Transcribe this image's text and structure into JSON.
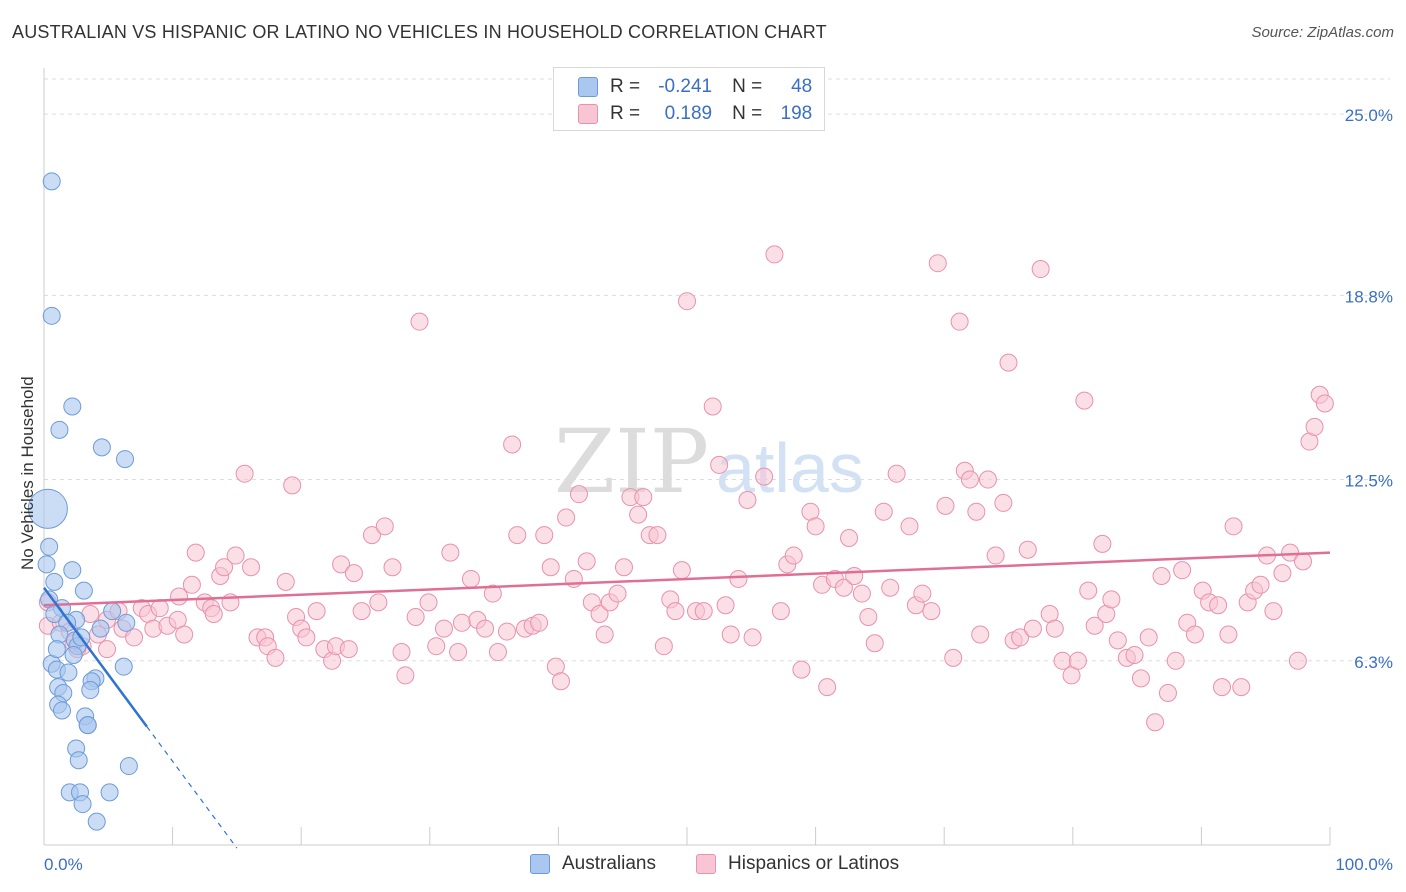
{
  "title": "AUSTRALIAN VS HISPANIC OR LATINO NO VEHICLES IN HOUSEHOLD CORRELATION CHART",
  "source": "Source: ZipAtlas.com",
  "watermark": {
    "zip": "ZIP",
    "atlas": "atlas"
  },
  "legend": {
    "rows": [
      {
        "r_label": "R =",
        "r_value": "-0.241",
        "n_label": "N =",
        "n_value": "48"
      },
      {
        "r_label": "R =",
        "r_value": "0.189",
        "n_label": "N =",
        "n_value": "198"
      }
    ]
  },
  "bottom_legend": {
    "australians": "Australians",
    "hispanics": "Hispanics or Latinos"
  },
  "colors": {
    "blue_fill": "#a9c7ef",
    "blue_stroke": "#6d9bd9",
    "blue_line": "#2f74d0",
    "pink_fill": "#f7c5d4",
    "pink_stroke": "#e991ad",
    "pink_line": "#e06f95",
    "tick_label": "#3a6fc6",
    "grid": "#dddddd"
  },
  "chart_data": {
    "type": "scatter",
    "title": "AUSTRALIAN VS HISPANIC OR LATINO NO VEHICLES IN HOUSEHOLD CORRELATION CHART",
    "xlabel": "",
    "ylabel": "No Vehicles in Household",
    "xlim": [
      0,
      100
    ],
    "ylim": [
      0,
      26.2
    ],
    "x_tick_labels": [
      "0.0%",
      "100.0%"
    ],
    "y_ticks": [
      6.3,
      12.5,
      18.8,
      25.0
    ],
    "y_tick_labels": [
      "6.3%",
      "12.5%",
      "18.8%",
      "25.0%"
    ],
    "grid": true,
    "legend_position": "top-center",
    "series": [
      {
        "name": "Australians",
        "r": -0.241,
        "n": 48,
        "trend": {
          "x0": 0,
          "y0": 8.8,
          "x1": 8,
          "y1": 4.05,
          "dashed_to_x": 15
        },
        "points": [
          [
            0.6,
            22.7,
            1
          ],
          [
            0.6,
            18.1,
            1
          ],
          [
            0.3,
            11.5,
            3
          ],
          [
            0.4,
            10.2,
            1
          ],
          [
            0.2,
            9.6,
            1
          ],
          [
            0.8,
            9.0,
            1
          ],
          [
            2.2,
            15.0,
            1
          ],
          [
            1.2,
            14.2,
            1
          ],
          [
            4.5,
            13.6,
            1
          ],
          [
            6.3,
            13.2,
            1
          ],
          [
            2.2,
            9.4,
            1
          ],
          [
            3.1,
            8.7,
            1
          ],
          [
            0.4,
            8.4,
            1
          ],
          [
            1.4,
            8.1,
            1
          ],
          [
            0.8,
            7.9,
            1
          ],
          [
            5.3,
            8.0,
            1
          ],
          [
            2.5,
            7.7,
            1
          ],
          [
            1.8,
            7.6,
            1
          ],
          [
            4.4,
            7.4,
            1
          ],
          [
            6.4,
            7.6,
            1
          ],
          [
            1.2,
            7.2,
            1
          ],
          [
            2.4,
            7.0,
            1
          ],
          [
            2.6,
            6.8,
            1
          ],
          [
            2.3,
            6.5,
            1
          ],
          [
            0.6,
            6.2,
            1
          ],
          [
            1.0,
            6.0,
            1
          ],
          [
            6.2,
            6.1,
            1
          ],
          [
            4.0,
            5.7,
            1
          ],
          [
            1.9,
            5.9,
            1
          ],
          [
            3.7,
            5.6,
            1
          ],
          [
            1.1,
            5.4,
            1
          ],
          [
            3.6,
            5.3,
            1
          ],
          [
            1.5,
            5.2,
            1
          ],
          [
            1.1,
            4.8,
            1
          ],
          [
            1.4,
            4.6,
            1
          ],
          [
            3.2,
            4.4,
            1
          ],
          [
            3.4,
            4.1,
            1
          ],
          [
            3.4,
            4.1,
            1
          ],
          [
            2.5,
            3.3,
            1
          ],
          [
            2.7,
            2.9,
            1
          ],
          [
            6.6,
            2.7,
            1
          ],
          [
            2.0,
            1.8,
            1
          ],
          [
            2.8,
            1.8,
            1
          ],
          [
            5.1,
            1.8,
            1
          ],
          [
            3.0,
            1.4,
            1
          ],
          [
            4.1,
            0.8,
            1
          ],
          [
            1.0,
            6.7,
            1
          ],
          [
            2.9,
            7.1,
            1
          ]
        ]
      },
      {
        "name": "Hispanics or Latinos",
        "r": 0.189,
        "n": 198,
        "trend": {
          "x0": 0,
          "y0": 8.2,
          "x1": 100,
          "y1": 10.0
        },
        "points": [
          [
            0.3,
            8.3,
            1
          ],
          [
            0.3,
            7.5,
            1
          ],
          [
            1.3,
            7.6,
            1
          ],
          [
            2.0,
            7.3,
            1
          ],
          [
            2.3,
            6.9,
            1
          ],
          [
            2.6,
            6.7,
            1
          ],
          [
            3.0,
            6.8,
            1
          ],
          [
            4.2,
            7.2,
            1
          ],
          [
            4.9,
            6.7,
            1
          ],
          [
            3.6,
            7.9,
            1
          ],
          [
            4.9,
            7.7,
            1
          ],
          [
            6.1,
            7.4,
            1
          ],
          [
            5.8,
            8.0,
            1
          ],
          [
            7.0,
            7.1,
            1
          ],
          [
            7.6,
            8.1,
            1
          ],
          [
            8.1,
            7.9,
            1
          ],
          [
            8.5,
            7.4,
            1
          ],
          [
            9.0,
            8.1,
            1
          ],
          [
            9.6,
            7.5,
            1
          ],
          [
            10.4,
            7.7,
            1
          ],
          [
            10.5,
            8.5,
            1
          ],
          [
            10.9,
            7.2,
            1
          ],
          [
            11.5,
            8.9,
            1
          ],
          [
            11.8,
            10.0,
            1
          ],
          [
            12.5,
            8.3,
            1
          ],
          [
            13.0,
            8.1,
            1
          ],
          [
            13.2,
            7.9,
            1
          ],
          [
            13.7,
            9.2,
            1
          ],
          [
            14.0,
            9.5,
            1
          ],
          [
            14.5,
            8.3,
            1
          ],
          [
            14.9,
            9.9,
            1
          ],
          [
            15.6,
            12.7,
            1
          ],
          [
            16.1,
            9.5,
            1
          ],
          [
            16.6,
            7.1,
            1
          ],
          [
            17.2,
            7.1,
            1
          ],
          [
            17.4,
            6.8,
            1
          ],
          [
            18.0,
            6.4,
            1
          ],
          [
            18.8,
            9.0,
            1
          ],
          [
            19.3,
            12.3,
            1
          ],
          [
            19.6,
            7.8,
            1
          ],
          [
            20.0,
            7.4,
            1
          ],
          [
            20.4,
            7.1,
            1
          ],
          [
            21.2,
            8.0,
            1
          ],
          [
            21.8,
            6.7,
            1
          ],
          [
            22.4,
            6.3,
            1
          ],
          [
            22.7,
            6.8,
            1
          ],
          [
            23.1,
            9.6,
            1
          ],
          [
            23.7,
            6.7,
            1
          ],
          [
            24.1,
            9.3,
            1
          ],
          [
            24.7,
            8.0,
            1
          ],
          [
            25.5,
            10.6,
            1
          ],
          [
            26.0,
            8.3,
            1
          ],
          [
            26.5,
            10.9,
            1
          ],
          [
            27.1,
            9.5,
            1
          ],
          [
            27.8,
            6.6,
            1
          ],
          [
            28.1,
            5.8,
            1
          ],
          [
            28.9,
            7.8,
            1
          ],
          [
            29.2,
            17.9,
            1
          ],
          [
            29.9,
            8.3,
            1
          ],
          [
            30.5,
            6.8,
            1
          ],
          [
            31.1,
            7.4,
            1
          ],
          [
            31.6,
            10.0,
            1
          ],
          [
            32.2,
            6.6,
            1
          ],
          [
            32.5,
            7.6,
            1
          ],
          [
            33.2,
            9.1,
            1
          ],
          [
            33.7,
            7.7,
            1
          ],
          [
            34.3,
            7.4,
            1
          ],
          [
            34.9,
            8.6,
            1
          ],
          [
            35.3,
            6.6,
            1
          ],
          [
            36.0,
            7.3,
            1
          ],
          [
            36.4,
            13.7,
            1
          ],
          [
            36.8,
            10.6,
            1
          ],
          [
            37.4,
            7.4,
            1
          ],
          [
            38.0,
            7.5,
            1
          ],
          [
            38.5,
            7.6,
            1
          ],
          [
            38.9,
            10.6,
            1
          ],
          [
            39.4,
            9.5,
            1
          ],
          [
            39.8,
            6.1,
            1
          ],
          [
            40.2,
            5.6,
            1
          ],
          [
            40.6,
            11.2,
            1
          ],
          [
            41.2,
            9.1,
            1
          ],
          [
            41.6,
            12.0,
            1
          ],
          [
            42.2,
            9.7,
            1
          ],
          [
            42.6,
            8.3,
            1
          ],
          [
            43.2,
            7.9,
            1
          ],
          [
            43.6,
            7.2,
            1
          ],
          [
            44.0,
            8.3,
            1
          ],
          [
            44.6,
            8.6,
            1
          ],
          [
            45.1,
            9.5,
            1
          ],
          [
            45.6,
            11.9,
            1
          ],
          [
            46.2,
            11.3,
            1
          ],
          [
            46.6,
            11.9,
            1
          ],
          [
            47.1,
            10.6,
            1
          ],
          [
            47.7,
            10.6,
            1
          ],
          [
            48.2,
            6.8,
            1
          ],
          [
            48.7,
            8.4,
            1
          ],
          [
            49.1,
            8.0,
            1
          ],
          [
            49.6,
            9.4,
            1
          ],
          [
            50.0,
            18.6,
            1
          ],
          [
            50.7,
            8.0,
            1
          ],
          [
            51.3,
            8.0,
            1
          ],
          [
            52.0,
            15.0,
            1
          ],
          [
            52.5,
            13.0,
            1
          ],
          [
            53.0,
            8.2,
            1
          ],
          [
            53.4,
            7.2,
            1
          ],
          [
            54.0,
            9.1,
            1
          ],
          [
            54.7,
            11.8,
            1
          ],
          [
            55.1,
            7.1,
            1
          ],
          [
            56.0,
            12.6,
            1
          ],
          [
            56.8,
            20.2,
            1
          ],
          [
            57.3,
            8.0,
            1
          ],
          [
            57.8,
            9.6,
            1
          ],
          [
            58.3,
            9.9,
            1
          ],
          [
            58.9,
            6.0,
            1
          ],
          [
            59.6,
            11.4,
            1
          ],
          [
            60.0,
            10.9,
            1
          ],
          [
            60.5,
            8.9,
            1
          ],
          [
            60.9,
            5.4,
            1
          ],
          [
            61.5,
            9.1,
            1
          ],
          [
            62.2,
            8.8,
            1
          ],
          [
            62.6,
            10.5,
            1
          ],
          [
            63.0,
            9.2,
            1
          ],
          [
            63.6,
            8.6,
            1
          ],
          [
            64.1,
            7.8,
            1
          ],
          [
            64.6,
            6.9,
            1
          ],
          [
            65.3,
            11.4,
            1
          ],
          [
            65.8,
            8.8,
            1
          ],
          [
            66.3,
            12.7,
            1
          ],
          [
            67.3,
            10.9,
            1
          ],
          [
            67.8,
            8.2,
            1
          ],
          [
            68.3,
            8.6,
            1
          ],
          [
            69.0,
            8.0,
            1
          ],
          [
            69.5,
            19.9,
            1
          ],
          [
            70.1,
            11.6,
            1
          ],
          [
            70.7,
            6.4,
            1
          ],
          [
            71.2,
            17.9,
            1
          ],
          [
            71.6,
            12.8,
            1
          ],
          [
            72.0,
            12.5,
            1
          ],
          [
            72.5,
            11.4,
            1
          ],
          [
            72.8,
            7.2,
            1
          ],
          [
            73.4,
            12.5,
            1
          ],
          [
            74.0,
            9.9,
            1
          ],
          [
            74.6,
            11.7,
            1
          ],
          [
            75.0,
            16.5,
            1
          ],
          [
            75.4,
            7.0,
            1
          ],
          [
            75.9,
            7.1,
            1
          ],
          [
            76.5,
            10.1,
            1
          ],
          [
            76.9,
            7.4,
            1
          ],
          [
            77.5,
            19.7,
            1
          ],
          [
            78.2,
            7.9,
            1
          ],
          [
            78.6,
            7.4,
            1
          ],
          [
            79.2,
            6.3,
            1
          ],
          [
            79.9,
            5.8,
            1
          ],
          [
            80.4,
            6.3,
            1
          ],
          [
            80.9,
            15.2,
            1
          ],
          [
            81.2,
            8.7,
            1
          ],
          [
            81.7,
            7.5,
            1
          ],
          [
            82.3,
            10.3,
            1
          ],
          [
            82.6,
            7.9,
            1
          ],
          [
            83.0,
            8.4,
            1
          ],
          [
            83.5,
            7.0,
            1
          ],
          [
            84.2,
            6.4,
            1
          ],
          [
            84.8,
            6.5,
            1
          ],
          [
            85.3,
            5.7,
            1
          ],
          [
            85.9,
            7.1,
            1
          ],
          [
            86.4,
            4.2,
            1
          ],
          [
            86.9,
            9.2,
            1
          ],
          [
            87.4,
            5.2,
            1
          ],
          [
            88.0,
            6.3,
            1
          ],
          [
            88.5,
            9.4,
            1
          ],
          [
            88.9,
            7.6,
            1
          ],
          [
            89.5,
            7.2,
            1
          ],
          [
            90.1,
            8.7,
            1
          ],
          [
            90.6,
            8.3,
            1
          ],
          [
            91.3,
            8.2,
            1
          ],
          [
            91.6,
            5.4,
            1
          ],
          [
            92.1,
            7.2,
            1
          ],
          [
            92.5,
            10.9,
            1
          ],
          [
            93.1,
            5.4,
            1
          ],
          [
            93.6,
            8.3,
            1
          ],
          [
            94.1,
            8.7,
            1
          ],
          [
            94.6,
            8.9,
            1
          ],
          [
            95.1,
            9.9,
            1
          ],
          [
            95.6,
            8.0,
            1
          ],
          [
            96.3,
            9.3,
            1
          ],
          [
            96.9,
            10.0,
            1
          ],
          [
            97.5,
            6.3,
            1
          ],
          [
            97.9,
            9.7,
            1
          ],
          [
            98.4,
            13.8,
            1
          ],
          [
            98.8,
            14.3,
            1
          ],
          [
            99.2,
            15.4,
            1
          ],
          [
            99.6,
            15.1,
            1
          ]
        ]
      }
    ]
  }
}
